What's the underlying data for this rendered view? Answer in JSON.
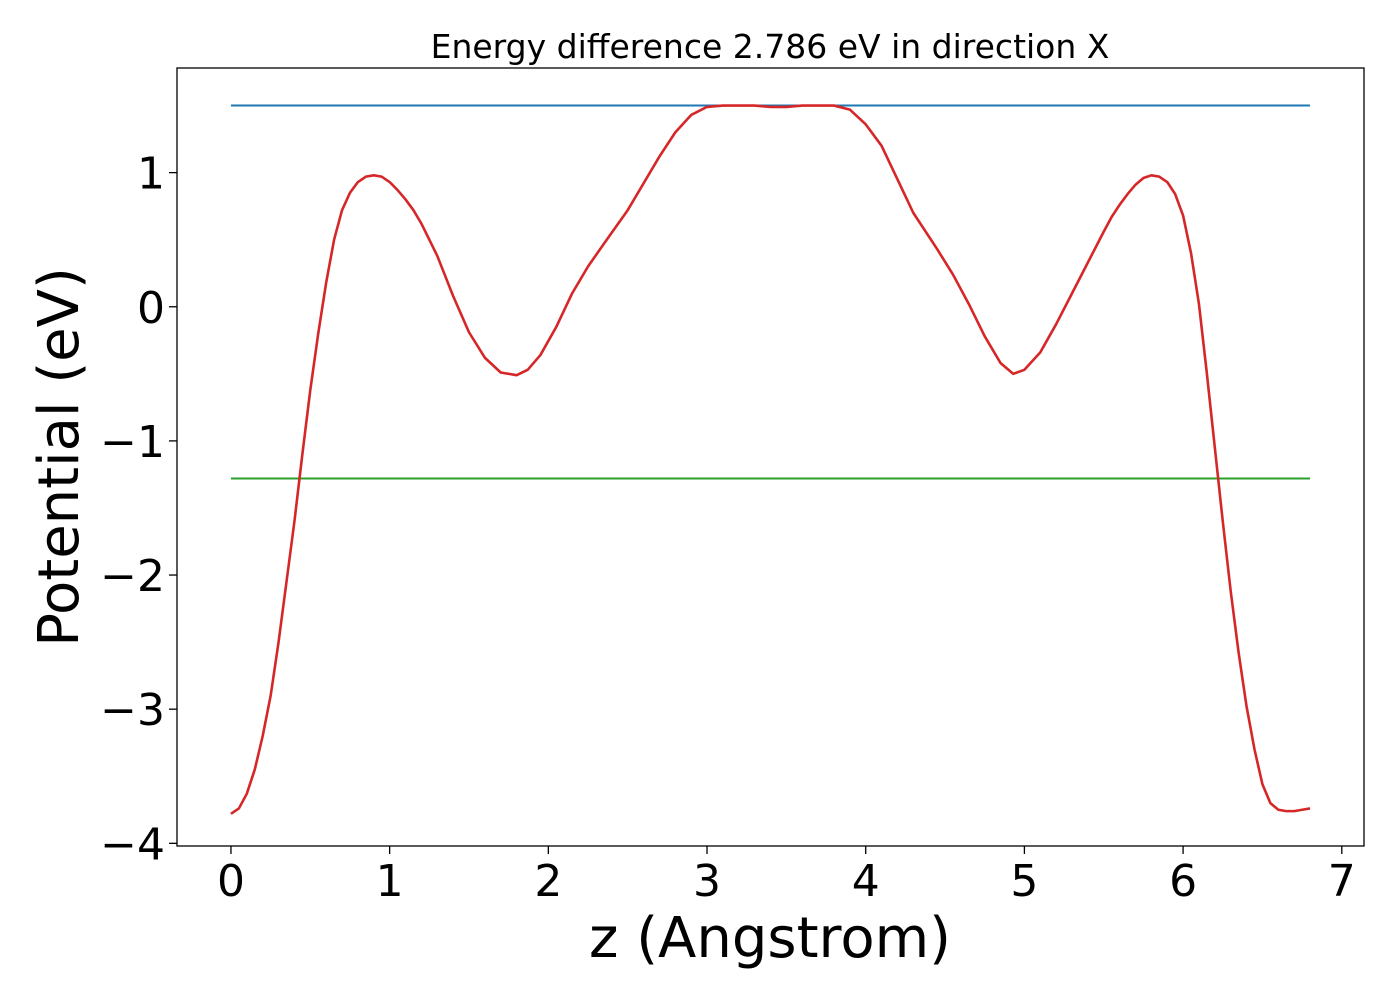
{
  "chart_data": {
    "type": "line",
    "title": "Energy difference 2.786 eV in direction X",
    "xlabel": "z (Angstrom)",
    "ylabel": "Potential (eV)",
    "xlim": [
      -0.34,
      7.14
    ],
    "ylim": [
      -4.02,
      1.78
    ],
    "xticks": [
      "0",
      "1",
      "2",
      "3",
      "4",
      "5",
      "6",
      "7"
    ],
    "yticks": [
      "1",
      "0",
      "−1",
      "−2",
      "−3",
      "−4"
    ],
    "grid": false,
    "series": [
      {
        "color": "#1f77b4",
        "x": [
          0,
          6.8
        ],
        "y": [
          1.5,
          1.5
        ]
      },
      {
        "color": "#2ca02c",
        "x": [
          0,
          6.8
        ],
        "y": [
          -1.28,
          -1.28
        ]
      },
      {
        "color": "#d62728",
        "x": [
          0,
          0.05,
          0.1,
          0.15,
          0.2,
          0.25,
          0.3,
          0.35,
          0.4,
          0.45,
          0.5,
          0.55,
          0.6,
          0.65,
          0.7,
          0.75,
          0.8,
          0.85,
          0.9,
          0.95,
          1.0,
          1.05,
          1.1,
          1.15,
          1.2,
          1.25,
          1.3,
          1.4,
          1.5,
          1.6,
          1.7,
          1.8,
          1.87,
          1.95,
          2.05,
          2.15,
          2.25,
          2.35,
          2.5,
          2.6,
          2.7,
          2.8,
          2.9,
          3.0,
          3.1,
          3.2,
          3.3,
          3.4,
          3.5,
          3.6,
          3.7,
          3.8,
          3.9,
          4.0,
          4.1,
          4.2,
          4.3,
          4.45,
          4.55,
          4.65,
          4.75,
          4.85,
          4.93,
          5.0,
          5.1,
          5.2,
          5.3,
          5.4,
          5.5,
          5.55,
          5.6,
          5.65,
          5.7,
          5.75,
          5.8,
          5.85,
          5.9,
          5.95,
          6.0,
          6.05,
          6.1,
          6.15,
          6.2,
          6.25,
          6.3,
          6.35,
          6.4,
          6.45,
          6.5,
          6.55,
          6.6,
          6.65,
          6.7,
          6.75,
          6.8
        ],
        "y": [
          -3.78,
          -3.74,
          -3.63,
          -3.45,
          -3.2,
          -2.9,
          -2.5,
          -2.05,
          -1.6,
          -1.1,
          -0.62,
          -0.2,
          0.18,
          0.5,
          0.72,
          0.85,
          0.93,
          0.97,
          0.98,
          0.97,
          0.93,
          0.87,
          0.8,
          0.72,
          0.62,
          0.5,
          0.38,
          0.08,
          -0.19,
          -0.38,
          -0.49,
          -0.51,
          -0.47,
          -0.36,
          -0.15,
          0.1,
          0.3,
          0.47,
          0.72,
          0.92,
          1.12,
          1.3,
          1.43,
          1.49,
          1.5,
          1.5,
          1.5,
          1.49,
          1.49,
          1.5,
          1.5,
          1.5,
          1.47,
          1.36,
          1.2,
          0.95,
          0.7,
          0.43,
          0.24,
          0.02,
          -0.22,
          -0.42,
          -0.5,
          -0.47,
          -0.34,
          -0.13,
          0.1,
          0.33,
          0.56,
          0.67,
          0.76,
          0.84,
          0.91,
          0.96,
          0.98,
          0.97,
          0.93,
          0.84,
          0.68,
          0.4,
          0.02,
          -0.5,
          -1.05,
          -1.6,
          -2.12,
          -2.58,
          -2.98,
          -3.3,
          -3.56,
          -3.7,
          -3.75,
          -3.76,
          -3.76,
          -3.75,
          -3.74
        ]
      }
    ]
  }
}
